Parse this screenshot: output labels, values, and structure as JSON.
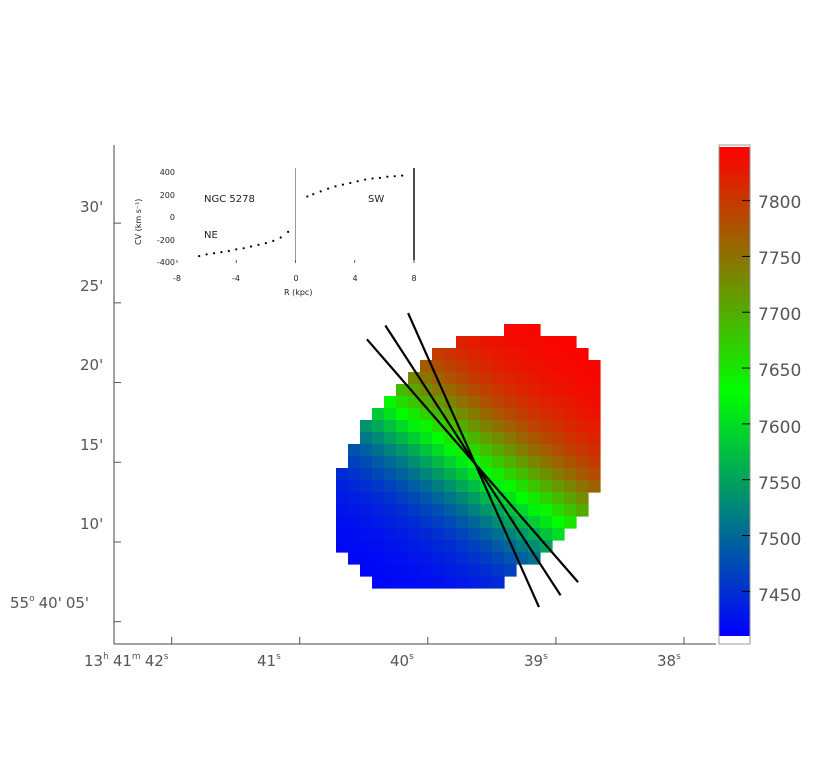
{
  "chart_data": [
    {
      "type": "heatmap",
      "description_role": "velocity field map",
      "x_ticks": [
        {
          "h": "13",
          "hs": "h",
          "m": "41",
          "ms": "m",
          "s": "42",
          "ss": "s",
          "ra": 42
        },
        {
          "s": "41",
          "ss": "s",
          "ra": 41
        },
        {
          "s": "40",
          "ss": "s",
          "ra": 40
        },
        {
          "s": "39",
          "ss": "s",
          "ra": 39
        },
        {
          "s": "38",
          "ss": "s",
          "ra": 38
        }
      ],
      "y_ticks": [
        {
          "label": "30'",
          "dec": 30
        },
        {
          "label": "25'",
          "dec": 25
        },
        {
          "label": "20'",
          "dec": 20
        },
        {
          "label": "15'",
          "dec": 15
        },
        {
          "label": "10'",
          "dec": 10
        },
        {
          "d": "55",
          "ds": "o",
          "m": "40'",
          "s": "05'",
          "dec": 5
        }
      ],
      "xlim": [
        42.45,
        37.75
      ],
      "ylim": [
        3.6,
        34.9
      ],
      "center": {
        "ra": 39.63,
        "dec": 14.9
      },
      "slit_position_angles_deg": [
        24,
        33,
        41
      ],
      "colorbar": {
        "ticks": [
          7450,
          7500,
          7550,
          7600,
          7650,
          7700,
          7750,
          7800
        ],
        "range": [
          7410,
          7848
        ],
        "colors": [
          "#0000ff",
          "#00ff00",
          "#ff0000"
        ]
      }
    },
    {
      "type": "scatter",
      "title": "NGC 5278",
      "labels": {
        "ne": "NE",
        "sw": "SW"
      },
      "xlabel": "R (kpc)",
      "ylabel": "CV (km s⁻¹)",
      "xlim": [
        -8,
        8
      ],
      "ylim": [
        -400,
        400
      ],
      "x_ticks": [
        "-8",
        "-4",
        "0",
        "4",
        "8"
      ],
      "y_ticks": [
        "400",
        "200",
        "0",
        "-200",
        "-400"
      ],
      "points": [
        {
          "x": -6.5,
          "y": -365
        },
        {
          "x": -6.0,
          "y": -350
        },
        {
          "x": -5.5,
          "y": -340
        },
        {
          "x": -5.0,
          "y": -330
        },
        {
          "x": -4.5,
          "y": -320
        },
        {
          "x": -4.0,
          "y": -305
        },
        {
          "x": -3.5,
          "y": -295
        },
        {
          "x": -3.0,
          "y": -280
        },
        {
          "x": -2.5,
          "y": -265
        },
        {
          "x": -2.0,
          "y": -250
        },
        {
          "x": -1.5,
          "y": -230
        },
        {
          "x": -1.0,
          "y": -200
        },
        {
          "x": -0.5,
          "y": -150
        },
        {
          "x": 0.8,
          "y": 165
        },
        {
          "x": 1.2,
          "y": 185
        },
        {
          "x": 1.7,
          "y": 210
        },
        {
          "x": 2.2,
          "y": 235
        },
        {
          "x": 2.7,
          "y": 255
        },
        {
          "x": 3.2,
          "y": 270
        },
        {
          "x": 3.7,
          "y": 285
        },
        {
          "x": 4.2,
          "y": 300
        },
        {
          "x": 4.7,
          "y": 315
        },
        {
          "x": 5.2,
          "y": 325
        },
        {
          "x": 5.7,
          "y": 330
        },
        {
          "x": 6.2,
          "y": 340
        },
        {
          "x": 6.7,
          "y": 345
        },
        {
          "x": 7.2,
          "y": 350
        }
      ]
    }
  ]
}
